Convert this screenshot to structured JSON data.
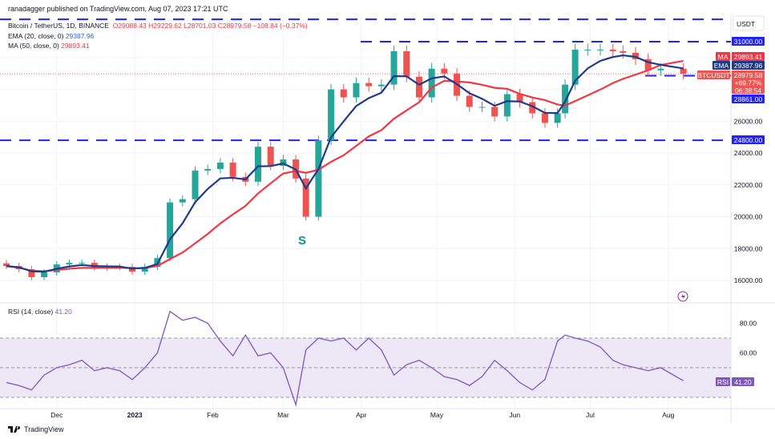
{
  "header": {
    "published": "ranadagger published on TradingView.com, Aug 07, 2023 17:21 UTC",
    "symbol": "Bitcoin / TetherUS, 1D, BINANCE",
    "open": "O29088.43",
    "high": "H29229.62",
    "low": "L28701.03",
    "close": "C28979.58",
    "change": "−108.84 (−0.37%)",
    "ema_label": "EMA (20, close, 0)",
    "ema_value": "29387.96",
    "ma_label": "MA (50, close, 0)",
    "ma_value": "29893.41",
    "rsi_label": "RSI (14, close)",
    "rsi_value": "41.20"
  },
  "axis": {
    "currency": "USDT",
    "price_ticks": [
      "26000.00",
      "24000.00",
      "22000.00",
      "20000.00",
      "18000.00",
      "16000.00"
    ],
    "rsi_ticks": [
      "80.00",
      "60.00"
    ],
    "time_ticks": [
      "Dec",
      "2023",
      "Feb",
      "Mar",
      "Apr",
      "May",
      "Jun",
      "Jul",
      "Aug"
    ]
  },
  "labels": {
    "level_31000": "31000.00",
    "level_24800": "24800.00",
    "level_28861": "28861.00",
    "ma_tag": "MA",
    "ma_price": "29893.41",
    "ema_tag": "EMA",
    "ema_price": "29387.96",
    "symbol_tag": "BTCUSDT",
    "last_price": "28979.58",
    "last_change": "+69.77%",
    "countdown": "06:38:54",
    "rsi_tag": "RSI",
    "rsi_price": "41.20",
    "annotation": "S"
  },
  "footer": {
    "brand": "TradingView"
  },
  "colors": {
    "up": "#26a69a",
    "down": "#ef5350",
    "ema": "#1e3a8a",
    "ma": "#f23645",
    "level": "#1e22ff",
    "rsi": "#7e57c2",
    "rsi_band": "#ede7f6"
  },
  "chart_data": {
    "type": "candlestick",
    "dates": [
      "2022-11-11",
      "2022-11-16",
      "2022-11-21",
      "2022-11-26",
      "2022-12-01",
      "2022-12-06",
      "2022-12-11",
      "2022-12-16",
      "2022-12-21",
      "2022-12-26",
      "2022-12-31",
      "2023-01-05",
      "2023-01-10",
      "2023-01-15",
      "2023-01-20",
      "2023-01-25",
      "2023-01-30",
      "2023-02-04",
      "2023-02-09",
      "2023-02-14",
      "2023-02-19",
      "2023-02-24",
      "2023-03-01",
      "2023-03-06",
      "2023-03-10",
      "2023-03-15",
      "2023-03-20",
      "2023-03-25",
      "2023-03-30",
      "2023-04-04",
      "2023-04-09",
      "2023-04-14",
      "2023-04-19",
      "2023-04-24",
      "2023-04-29",
      "2023-05-04",
      "2023-05-09",
      "2023-05-14",
      "2023-05-19",
      "2023-05-24",
      "2023-05-29",
      "2023-06-03",
      "2023-06-08",
      "2023-06-13",
      "2023-06-18",
      "2023-06-21",
      "2023-06-25",
      "2023-06-30",
      "2023-07-05",
      "2023-07-10",
      "2023-07-14",
      "2023-07-19",
      "2023-07-24",
      "2023-07-29",
      "2023-08-07"
    ],
    "close": [
      16900,
      16700,
      16200,
      16500,
      17000,
      17100,
      17100,
      16800,
      16850,
      16850,
      16550,
      16850,
      17400,
      20900,
      21100,
      22900,
      23000,
      23400,
      22500,
      22200,
      24400,
      23200,
      23600,
      22400,
      20000,
      24800,
      28000,
      27500,
      28400,
      28200,
      28300,
      30400,
      28800,
      27500,
      29300,
      29000,
      27600,
      26900,
      26900,
      26300,
      27700,
      27200,
      26500,
      25900,
      26500,
      28300,
      30500,
      30500,
      30500,
      30400,
      30300,
      29900,
      29200,
      29300,
      28980
    ],
    "rsi": [
      40,
      38,
      35,
      45,
      50,
      52,
      55,
      48,
      50,
      48,
      42,
      50,
      60,
      88,
      82,
      84,
      80,
      68,
      58,
      72,
      58,
      60,
      50,
      25,
      62,
      70,
      68,
      70,
      62,
      70,
      62,
      45,
      52,
      55,
      50,
      44,
      42,
      38,
      44,
      55,
      48,
      40,
      35,
      42,
      68,
      72,
      70,
      68,
      64,
      55,
      52,
      50,
      48,
      50,
      41.2
    ],
    "price_range": [
      15200,
      32800
    ],
    "rsi_range": [
      20,
      95
    ],
    "horizontal_levels": [
      32400,
      31000,
      28861,
      24800
    ],
    "rsi_bands": [
      30,
      50,
      70
    ],
    "grid": true
  }
}
